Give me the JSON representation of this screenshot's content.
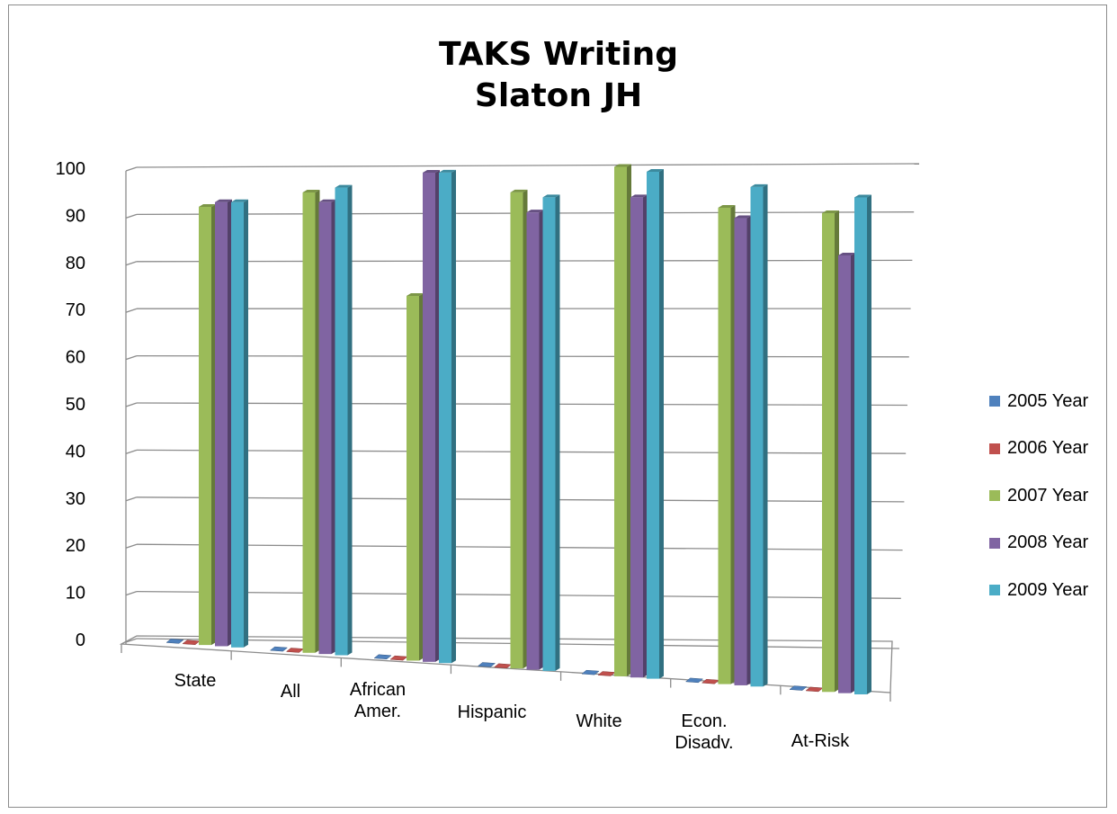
{
  "chart_data": {
    "type": "bar",
    "title": "TAKS Writing",
    "subtitle": "Slaton JH",
    "categories": [
      "State",
      "All",
      "African Amer.",
      "Hispanic",
      "White",
      "Econ. Disadv.",
      "At-Risk"
    ],
    "category_lines": [
      [
        "State"
      ],
      [
        "All"
      ],
      [
        "African",
        "Amer."
      ],
      [
        "Hispanic"
      ],
      [
        "White"
      ],
      [
        "Econ.",
        "Disadv."
      ],
      [
        "At-Risk"
      ]
    ],
    "series": [
      {
        "name": "2005 Year",
        "color": "#4f81bd",
        "values": [
          0,
          0,
          0,
          0,
          0,
          0,
          0
        ]
      },
      {
        "name": "2006 Year",
        "color": "#c0504d",
        "values": [
          0,
          0,
          0,
          0,
          0,
          0,
          0
        ]
      },
      {
        "name": "2007 Year",
        "color": "#9bbb59",
        "values": [
          92,
          95,
          74,
          95,
          100,
          92,
          91
        ]
      },
      {
        "name": "2008 Year",
        "color": "#8064a2",
        "values": [
          93,
          93,
          99,
          91,
          94,
          90,
          83
        ]
      },
      {
        "name": "2009 Year",
        "color": "#4bacc6",
        "values": [
          93,
          96,
          99,
          94,
          99,
          96,
          94
        ]
      }
    ],
    "ylim": [
      0,
      100
    ],
    "yticks": [
      0,
      10,
      20,
      30,
      40,
      50,
      60,
      70,
      80,
      90,
      100
    ],
    "xlabel": "",
    "ylabel": "",
    "grid": true,
    "legend_position": "right"
  }
}
